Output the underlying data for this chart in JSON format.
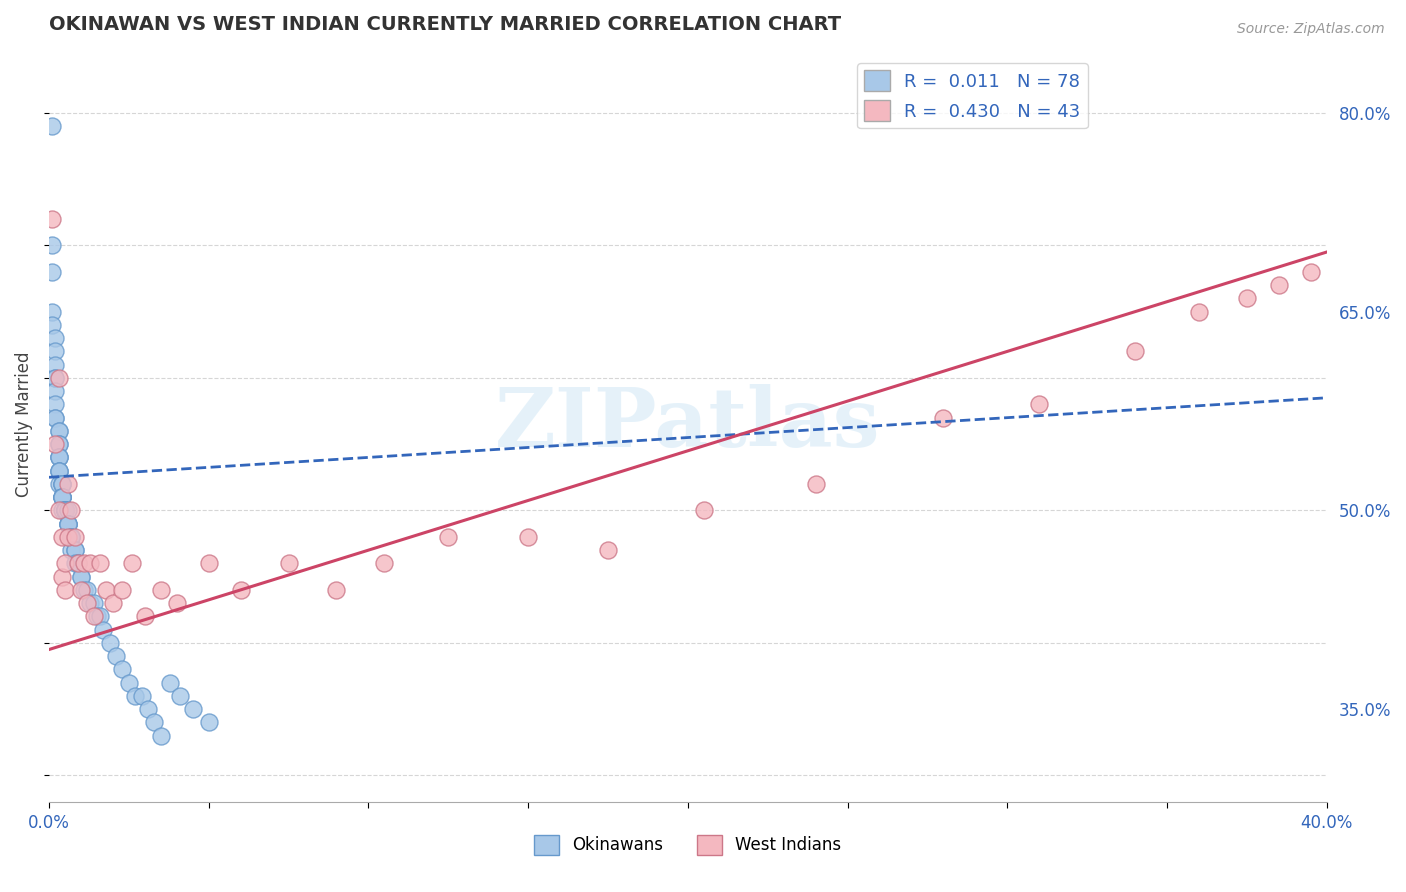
{
  "title": "OKINAWAN VS WEST INDIAN CURRENTLY MARRIED CORRELATION CHART",
  "source": "Source: ZipAtlas.com",
  "ylabel": "Currently Married",
  "xlim": [
    0.0,
    0.4
  ],
  "ylim": [
    0.28,
    0.85
  ],
  "right_yticks": [
    0.35,
    0.5,
    0.65,
    0.8
  ],
  "okinawan_color": "#a8c8e8",
  "okinawan_edge": "#6699cc",
  "west_indian_color": "#f4b8c0",
  "west_indian_edge": "#cc7788",
  "trend_okinawan_color": "#3366bb",
  "trend_west_indian_color": "#cc4466",
  "watermark": "ZIPatlas",
  "background_color": "#ffffff",
  "grid_color": "#cccccc",
  "okinawan_x": [
    0.001,
    0.001,
    0.001,
    0.001,
    0.001,
    0.002,
    0.002,
    0.002,
    0.002,
    0.002,
    0.002,
    0.002,
    0.002,
    0.002,
    0.003,
    0.003,
    0.003,
    0.003,
    0.003,
    0.003,
    0.003,
    0.003,
    0.003,
    0.003,
    0.003,
    0.004,
    0.004,
    0.004,
    0.004,
    0.004,
    0.004,
    0.004,
    0.004,
    0.004,
    0.005,
    0.005,
    0.005,
    0.005,
    0.005,
    0.005,
    0.005,
    0.005,
    0.006,
    0.006,
    0.006,
    0.006,
    0.006,
    0.007,
    0.007,
    0.007,
    0.007,
    0.008,
    0.008,
    0.008,
    0.009,
    0.009,
    0.01,
    0.01,
    0.011,
    0.012,
    0.013,
    0.014,
    0.015,
    0.016,
    0.017,
    0.019,
    0.021,
    0.023,
    0.025,
    0.027,
    0.029,
    0.031,
    0.033,
    0.035,
    0.038,
    0.041,
    0.045,
    0.05
  ],
  "okinawan_y": [
    0.79,
    0.7,
    0.68,
    0.65,
    0.64,
    0.63,
    0.62,
    0.61,
    0.6,
    0.6,
    0.59,
    0.58,
    0.57,
    0.57,
    0.56,
    0.56,
    0.55,
    0.55,
    0.54,
    0.54,
    0.54,
    0.53,
    0.53,
    0.53,
    0.52,
    0.52,
    0.52,
    0.52,
    0.51,
    0.51,
    0.51,
    0.51,
    0.51,
    0.5,
    0.5,
    0.5,
    0.5,
    0.5,
    0.5,
    0.5,
    0.5,
    0.5,
    0.5,
    0.49,
    0.49,
    0.49,
    0.49,
    0.48,
    0.48,
    0.48,
    0.47,
    0.47,
    0.47,
    0.46,
    0.46,
    0.46,
    0.45,
    0.45,
    0.44,
    0.44,
    0.43,
    0.43,
    0.42,
    0.42,
    0.41,
    0.4,
    0.39,
    0.38,
    0.37,
    0.36,
    0.36,
    0.35,
    0.34,
    0.33,
    0.37,
    0.36,
    0.35,
    0.34
  ],
  "west_indian_x": [
    0.001,
    0.002,
    0.003,
    0.003,
    0.004,
    0.004,
    0.005,
    0.005,
    0.006,
    0.006,
    0.007,
    0.008,
    0.009,
    0.01,
    0.011,
    0.012,
    0.013,
    0.014,
    0.016,
    0.018,
    0.02,
    0.023,
    0.026,
    0.03,
    0.035,
    0.04,
    0.05,
    0.06,
    0.075,
    0.09,
    0.105,
    0.125,
    0.15,
    0.175,
    0.205,
    0.24,
    0.28,
    0.31,
    0.34,
    0.36,
    0.375,
    0.385,
    0.395
  ],
  "west_indian_y": [
    0.72,
    0.55,
    0.6,
    0.5,
    0.48,
    0.45,
    0.46,
    0.44,
    0.52,
    0.48,
    0.5,
    0.48,
    0.46,
    0.44,
    0.46,
    0.43,
    0.46,
    0.42,
    0.46,
    0.44,
    0.43,
    0.44,
    0.46,
    0.42,
    0.44,
    0.43,
    0.46,
    0.44,
    0.46,
    0.44,
    0.46,
    0.48,
    0.48,
    0.47,
    0.5,
    0.52,
    0.57,
    0.58,
    0.62,
    0.65,
    0.66,
    0.67,
    0.68
  ],
  "trend_ok_x0": 0.0,
  "trend_ok_x1": 0.4,
  "trend_ok_y0": 0.525,
  "trend_ok_y1": 0.585,
  "trend_wi_x0": 0.0,
  "trend_wi_x1": 0.4,
  "trend_wi_y0": 0.395,
  "trend_wi_y1": 0.695
}
